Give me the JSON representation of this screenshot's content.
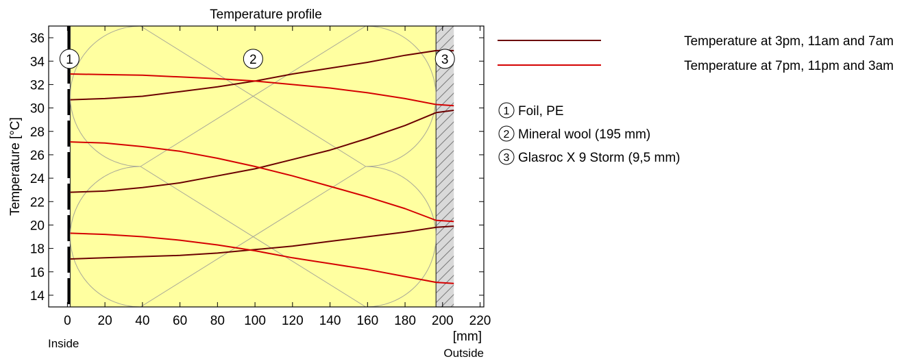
{
  "chart_data": {
    "type": "line",
    "title": "Temperature profile",
    "xlabel": "[mm]",
    "ylabel": "Temperature  [°C]",
    "xlim": [
      -10,
      222
    ],
    "ylim": [
      13,
      37
    ],
    "x_ticks": [
      "0",
      "20",
      "40",
      "60",
      "80",
      "100",
      "120",
      "140",
      "160",
      "180",
      "200",
      "220"
    ],
    "x_tick_values": [
      0,
      20,
      40,
      60,
      80,
      100,
      120,
      140,
      160,
      180,
      200,
      220
    ],
    "y_ticks": [
      "14",
      "16",
      "18",
      "20",
      "22",
      "24",
      "26",
      "28",
      "30",
      "32",
      "34",
      "36"
    ],
    "y_tick_values": [
      14,
      16,
      18,
      20,
      22,
      24,
      26,
      28,
      30,
      32,
      34,
      36
    ],
    "inside_label": "Inside",
    "outside_label": "Outside",
    "grid": false,
    "legend_position": "right",
    "layers": [
      {
        "number": "1",
        "name": "Foil, PE",
        "x_start": 0,
        "x_end": 1.5,
        "color": "#ffffff"
      },
      {
        "number": "2",
        "name": "Mineral wool (195 mm)",
        "x_start": 1.5,
        "x_end": 196.5,
        "color": "#ffffa0"
      },
      {
        "number": "3",
        "name": "Glasroc X 9 Storm (9,5 mm)",
        "x_start": 196.5,
        "x_end": 206,
        "color": "#d9d9d9"
      }
    ],
    "layer_number_y": 34.2,
    "series": [
      {
        "name": "Temperature at 3pm, 11am and 7am",
        "color": "#6b0000",
        "group": 0,
        "x": [
          1.5,
          20,
          40,
          60,
          80,
          100,
          120,
          140,
          160,
          180,
          196.5,
          206
        ],
        "y": [
          30.7,
          30.8,
          31.0,
          31.4,
          31.8,
          32.3,
          32.9,
          33.4,
          33.9,
          34.5,
          34.9,
          34.9
        ]
      },
      {
        "name": "Temperature at 3pm, 11am and 7am",
        "color": "#6b0000",
        "group": 0,
        "x": [
          1.5,
          20,
          40,
          60,
          80,
          100,
          120,
          140,
          160,
          180,
          196.5,
          206
        ],
        "y": [
          22.8,
          22.9,
          23.2,
          23.6,
          24.2,
          24.8,
          25.6,
          26.4,
          27.4,
          28.5,
          29.6,
          29.8
        ]
      },
      {
        "name": "Temperature at 3pm, 11am and 7am",
        "color": "#6b0000",
        "group": 0,
        "x": [
          1.5,
          20,
          40,
          60,
          80,
          100,
          120,
          140,
          160,
          180,
          196.5,
          206
        ],
        "y": [
          17.1,
          17.2,
          17.3,
          17.4,
          17.6,
          17.9,
          18.2,
          18.6,
          19.0,
          19.4,
          19.8,
          19.9
        ]
      },
      {
        "name": "Temperature at 7pm, 11pm and 3am",
        "color": "#d40000",
        "group": 1,
        "x": [
          1.5,
          20,
          40,
          60,
          80,
          100,
          120,
          140,
          160,
          180,
          196.5,
          206
        ],
        "y": [
          32.9,
          32.85,
          32.8,
          32.65,
          32.5,
          32.3,
          32.0,
          31.7,
          31.3,
          30.8,
          30.3,
          30.2
        ]
      },
      {
        "name": "Temperature at 7pm, 11pm and 3am",
        "color": "#d40000",
        "group": 1,
        "x": [
          1.5,
          20,
          40,
          60,
          80,
          100,
          120,
          140,
          160,
          180,
          196.5,
          206
        ],
        "y": [
          27.1,
          27.0,
          26.7,
          26.3,
          25.7,
          25.0,
          24.2,
          23.3,
          22.4,
          21.4,
          20.4,
          20.3
        ]
      },
      {
        "name": "Temperature at 7pm, 11pm and 3am",
        "color": "#d40000",
        "group": 1,
        "x": [
          1.5,
          20,
          40,
          60,
          80,
          100,
          120,
          140,
          160,
          180,
          196.5,
          206
        ],
        "y": [
          19.3,
          19.2,
          19.0,
          18.7,
          18.3,
          17.8,
          17.2,
          16.7,
          16.2,
          15.6,
          15.1,
          15.0
        ]
      }
    ],
    "legend": [
      {
        "label": "Temperature at 3pm, 11am and 7am",
        "color": "#6b0000"
      },
      {
        "label": "Temperature at 7pm, 11pm and 3am",
        "color": "#d40000"
      }
    ]
  }
}
